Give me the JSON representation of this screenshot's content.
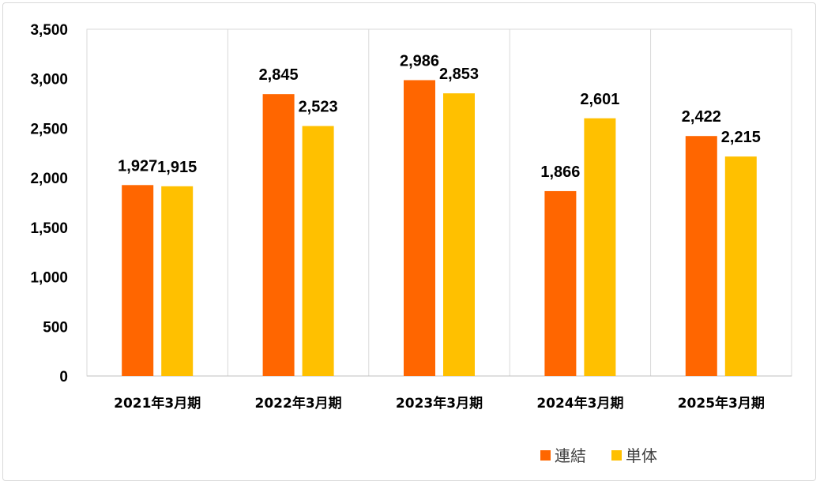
{
  "chart_data": {
    "type": "bar",
    "categories": [
      "2021年3月期",
      "2022年3月期",
      "2023年3月期",
      "2024年3月期",
      "2025年3月期"
    ],
    "series": [
      {
        "name": "連結",
        "values": [
          1927,
          2845,
          2986,
          1866,
          2422
        ],
        "color": "#ff6600",
        "labels": [
          "1,927",
          "2,845",
          "2,986",
          "1,866",
          "2,422"
        ]
      },
      {
        "name": "単体",
        "values": [
          1915,
          2523,
          2853,
          2601,
          2215
        ],
        "color": "#ffc000",
        "labels": [
          "1,915",
          "2,523",
          "2,853",
          "2,601",
          "2,215"
        ]
      }
    ],
    "ylim": [
      0,
      3500
    ],
    "yticks": [
      0,
      500,
      1000,
      1500,
      2000,
      2500,
      3000,
      3500
    ],
    "ytick_labels": [
      "0",
      "500",
      "1,000",
      "1,500",
      "2,000",
      "2,500",
      "3,000",
      "3,500"
    ],
    "grid": "vertical separators between categories",
    "legend_position": "bottom-right"
  }
}
